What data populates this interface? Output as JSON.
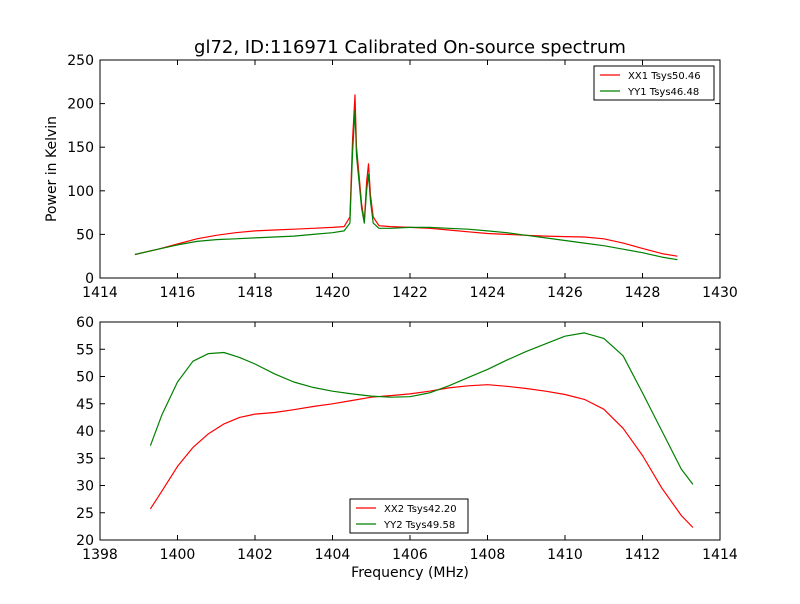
{
  "figure": {
    "title": "gl72, ID:116971 Calibrated On-source spectrum"
  },
  "chart_data": [
    {
      "type": "line",
      "title": "gl72, ID:116971 Calibrated On-source spectrum",
      "xlabel": "",
      "ylabel": "Power in Kelvin",
      "xlim": [
        1414,
        1430
      ],
      "ylim": [
        0,
        250
      ],
      "xticks": [
        1414,
        1416,
        1418,
        1420,
        1422,
        1424,
        1426,
        1428,
        1430
      ],
      "yticks": [
        0,
        50,
        100,
        150,
        200,
        250
      ],
      "grid": false,
      "legend_position": "top-right",
      "series": [
        {
          "name": "XX1 Tsys50.46",
          "color": "#ff0000",
          "x": [
            1414.9,
            1415.5,
            1416.0,
            1416.5,
            1417.0,
            1417.5,
            1418.0,
            1418.5,
            1419.0,
            1419.5,
            1420.0,
            1420.3,
            1420.45,
            1420.52,
            1420.58,
            1420.62,
            1420.68,
            1420.75,
            1420.82,
            1420.88,
            1420.93,
            1420.98,
            1421.05,
            1421.2,
            1421.5,
            1422.0,
            1422.5,
            1423.0,
            1423.5,
            1424.0,
            1424.5,
            1425.0,
            1425.5,
            1426.0,
            1426.5,
            1427.0,
            1427.5,
            1428.0,
            1428.5,
            1428.9
          ],
          "y": [
            27,
            33,
            39,
            45,
            49,
            52,
            54,
            55,
            56,
            57,
            58,
            59,
            70,
            160,
            210,
            150,
            120,
            85,
            65,
            110,
            131,
            95,
            70,
            60,
            59,
            58,
            57,
            55,
            53,
            51,
            50,
            49,
            48,
            47.5,
            47,
            45,
            40,
            34,
            28,
            25
          ]
        },
        {
          "name": "YY1 Tsys46.48",
          "color": "#008000",
          "x": [
            1414.9,
            1415.5,
            1416.0,
            1416.5,
            1417.0,
            1417.5,
            1418.0,
            1418.5,
            1419.0,
            1419.5,
            1420.0,
            1420.3,
            1420.45,
            1420.52,
            1420.58,
            1420.62,
            1420.68,
            1420.75,
            1420.82,
            1420.88,
            1420.93,
            1420.98,
            1421.05,
            1421.2,
            1421.5,
            1422.0,
            1422.5,
            1423.0,
            1423.5,
            1424.0,
            1424.5,
            1425.0,
            1425.5,
            1426.0,
            1426.5,
            1427.0,
            1427.5,
            1428.0,
            1428.5,
            1428.9
          ],
          "y": [
            27,
            33,
            38,
            42,
            44,
            45,
            46,
            47,
            48,
            50,
            52,
            54,
            63,
            145,
            192,
            140,
            112,
            80,
            63,
            100,
            119,
            88,
            63,
            57,
            57,
            58,
            58,
            57,
            56,
            54,
            52,
            49,
            46,
            43,
            40,
            37,
            33,
            29,
            24,
            21
          ]
        }
      ]
    },
    {
      "type": "line",
      "title": "",
      "xlabel": "Frequency (MHz)",
      "ylabel": "",
      "xlim": [
        1398,
        1414
      ],
      "ylim": [
        20,
        60
      ],
      "xticks": [
        1398,
        1400,
        1402,
        1404,
        1406,
        1408,
        1410,
        1412,
        1414
      ],
      "yticks": [
        20,
        25,
        30,
        35,
        40,
        45,
        50,
        55,
        60
      ],
      "grid": false,
      "legend_position": "bottom-center",
      "series": [
        {
          "name": "XX2 Tsys42.20",
          "color": "#ff0000",
          "x": [
            1399.3,
            1399.6,
            1400.0,
            1400.4,
            1400.8,
            1401.2,
            1401.6,
            1402.0,
            1402.5,
            1403.0,
            1403.5,
            1404.0,
            1404.5,
            1405.0,
            1405.5,
            1406.0,
            1406.5,
            1407.0,
            1407.5,
            1408.0,
            1408.5,
            1409.0,
            1409.5,
            1410.0,
            1410.5,
            1411.0,
            1411.5,
            1412.0,
            1412.5,
            1413.0,
            1413.3
          ],
          "y": [
            25.7,
            29.0,
            33.5,
            37.0,
            39.5,
            41.3,
            42.5,
            43.1,
            43.4,
            43.9,
            44.5,
            45.0,
            45.6,
            46.2,
            46.5,
            46.8,
            47.3,
            47.9,
            48.3,
            48.5,
            48.2,
            47.8,
            47.3,
            46.7,
            45.8,
            44.0,
            40.5,
            35.5,
            29.5,
            24.5,
            22.3
          ]
        },
        {
          "name": "YY2 Tsys49.58",
          "color": "#008000",
          "x": [
            1399.3,
            1399.6,
            1400.0,
            1400.4,
            1400.8,
            1401.2,
            1401.6,
            1402.0,
            1402.5,
            1403.0,
            1403.5,
            1404.0,
            1404.5,
            1405.0,
            1405.5,
            1406.0,
            1406.5,
            1407.0,
            1407.5,
            1408.0,
            1408.5,
            1409.0,
            1409.5,
            1410.0,
            1410.5,
            1411.0,
            1411.5,
            1412.0,
            1412.5,
            1413.0,
            1413.3
          ],
          "y": [
            37.3,
            43.0,
            49.0,
            52.8,
            54.2,
            54.4,
            53.5,
            52.3,
            50.5,
            49.0,
            48.0,
            47.3,
            46.8,
            46.4,
            46.2,
            46.3,
            47.0,
            48.3,
            49.8,
            51.3,
            53.0,
            54.6,
            56.0,
            57.4,
            58.0,
            57.0,
            53.8,
            47.0,
            40.0,
            33.0,
            30.2
          ]
        }
      ]
    }
  ]
}
